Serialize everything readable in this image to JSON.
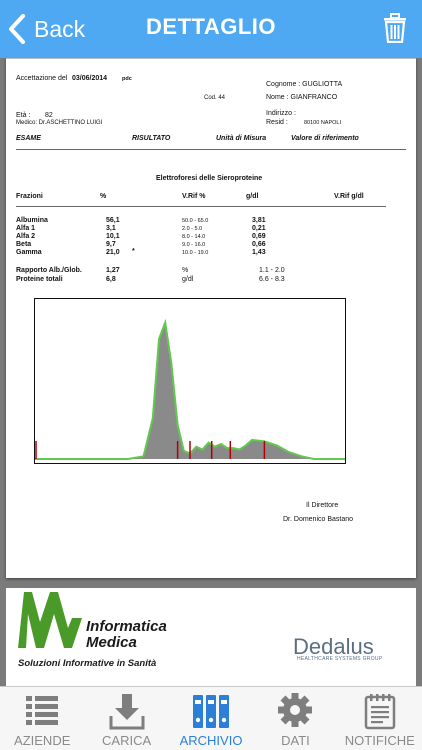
{
  "nav": {
    "back_label": "Back",
    "title": "DETTAGLIO"
  },
  "doc": {
    "accettazione_label": "Accettazione del",
    "accettazione_date": "03/06/2014",
    "pdc": "pdc",
    "cognome": "Cognome : GUGLIOTTA",
    "cod": "Cod.  44",
    "nome": "Nome : GIANFRANCO",
    "eta_label": "Età :",
    "eta_value": "82",
    "medico": "Medico: Dr.ASCHETTINO LUIGI",
    "indirizzo": "Indirizzo :",
    "resid_label": "Resid :",
    "resid_value": "80100 NAPOLI",
    "headers": {
      "esame": "ESAME",
      "risultato": "RISULTATO",
      "unita": "Unità di Misura",
      "riferimento": "Valore di riferimento"
    },
    "section_title": "Elettroforesi delle Sieroproteine",
    "frazioni_headers": {
      "frazioni": "Frazioni",
      "percent": "%",
      "vrif_pct": "V.Rif %",
      "gdl": "g/dl",
      "vrif_gdl": "V.Rif g/dl"
    },
    "rows": [
      {
        "name": "Albumina",
        "pct": "56,1",
        "mark": "",
        "range": "50.0 - 65.0",
        "gdl": "3,81"
      },
      {
        "name": "Alfa 1",
        "pct": "3,1",
        "mark": "",
        "range": "2.0 - 5.0",
        "gdl": "0,21"
      },
      {
        "name": "Alfa 2",
        "pct": "10,1",
        "mark": "",
        "range": "8.0 - 14.0",
        "gdl": "0,69"
      },
      {
        "name": "Beta",
        "pct": "9,7",
        "mark": "",
        "range": "9.0 - 16.0",
        "gdl": "0,66"
      },
      {
        "name": "Gamma",
        "pct": "21,0",
        "mark": "*",
        "range": "10.0 - 19.0",
        "gdl": "1,43"
      }
    ],
    "extra_rows": [
      {
        "name": "Rapporto Alb./Glob.",
        "value": "1,27",
        "unit": "%",
        "range": "1.1 - 2.0"
      },
      {
        "name": "Proteine totali",
        "value": "6,8",
        "unit": "g/dl",
        "range": "6.6 - 8.3"
      }
    ],
    "signature_title": "Il Direttore",
    "signature_name": "Dr. Domenico Bastano"
  },
  "chart_data": {
    "type": "area",
    "description_series": "densitometric electrophoresis curve",
    "x": [
      0,
      10,
      20,
      30,
      35,
      38,
      40,
      42,
      44,
      46,
      48,
      50,
      52,
      54,
      56,
      58,
      60,
      62,
      64,
      66,
      68,
      70,
      74,
      78,
      82,
      86,
      90,
      94,
      100
    ],
    "values": [
      0,
      0,
      0,
      0,
      2,
      30,
      88,
      100,
      70,
      25,
      6,
      4,
      9,
      7,
      12,
      9,
      11,
      8,
      8,
      7,
      10,
      14,
      13,
      10,
      5,
      2,
      0,
      0,
      0
    ],
    "fraction_dividers_x": [
      0,
      46,
      50,
      57,
      63,
      74
    ],
    "xlim": [
      0,
      100
    ],
    "ylim": [
      0,
      110
    ]
  },
  "page2": {
    "logo_line1": "Informatica",
    "logo_line2": "Medica",
    "tagline": "Soluzioni Informative in Sanità",
    "dedalus": "Dedalus",
    "dedalus_sub": "HEALTHCARE SYSTEMS GROUP"
  },
  "tabs": [
    {
      "label": "AZIENDE",
      "icon": "list-icon",
      "active": false
    },
    {
      "label": "CARICA",
      "icon": "download-icon",
      "active": false
    },
    {
      "label": "ARCHIVIO",
      "icon": "binders-icon",
      "active": true
    },
    {
      "label": "DATI",
      "icon": "gear-icon",
      "active": false
    },
    {
      "label": "NOTIFICHE",
      "icon": "notepad-icon",
      "active": false
    }
  ],
  "colors": {
    "nav": "#4ea8f2",
    "active_tab": "#2b7fd8",
    "curve_line": "#63c94e",
    "curve_fill": "#8a8a8a",
    "divider": "#b00000"
  }
}
